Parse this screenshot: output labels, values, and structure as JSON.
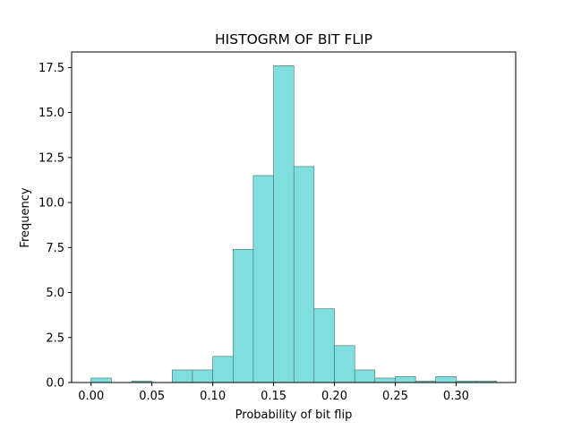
{
  "chart_data": {
    "type": "bar",
    "title": "HISTOGRM OF BIT FLIP",
    "xlabel": "Probability of bit flip",
    "ylabel": "Frequency",
    "xlim": [
      -0.016,
      0.349
    ],
    "ylim": [
      0,
      17.5
    ],
    "x_ticks": [
      0.0,
      0.05,
      0.1,
      0.15,
      0.2,
      0.25,
      0.3
    ],
    "x_tick_labels": [
      "0.00",
      "0.05",
      "0.10",
      "0.15",
      "0.20",
      "0.25",
      "0.30"
    ],
    "y_ticks": [
      0.0,
      2.5,
      5.0,
      7.5,
      10.0,
      12.5,
      15.0,
      17.5
    ],
    "y_tick_labels": [
      "0.0",
      "2.5",
      "5.0",
      "7.5",
      "10.0",
      "12.5",
      "15.0",
      "17.5"
    ],
    "bin_edges": [
      0.0,
      0.0167,
      0.0333,
      0.05,
      0.0667,
      0.0833,
      0.1,
      0.1167,
      0.1333,
      0.15,
      0.1667,
      0.1833,
      0.2,
      0.2167,
      0.2333,
      0.25,
      0.2667,
      0.2833,
      0.3,
      0.3167,
      0.3333
    ],
    "values": [
      0.25,
      0.0,
      0.08,
      0.0,
      0.7,
      0.7,
      1.45,
      7.4,
      11.5,
      17.6,
      12.0,
      4.1,
      2.05,
      0.7,
      0.25,
      0.33,
      0.08,
      0.33,
      0.08,
      0.08
    ],
    "grid": false,
    "bar_color": "#7fdfdf",
    "edge_color": "#4d6b6b"
  }
}
